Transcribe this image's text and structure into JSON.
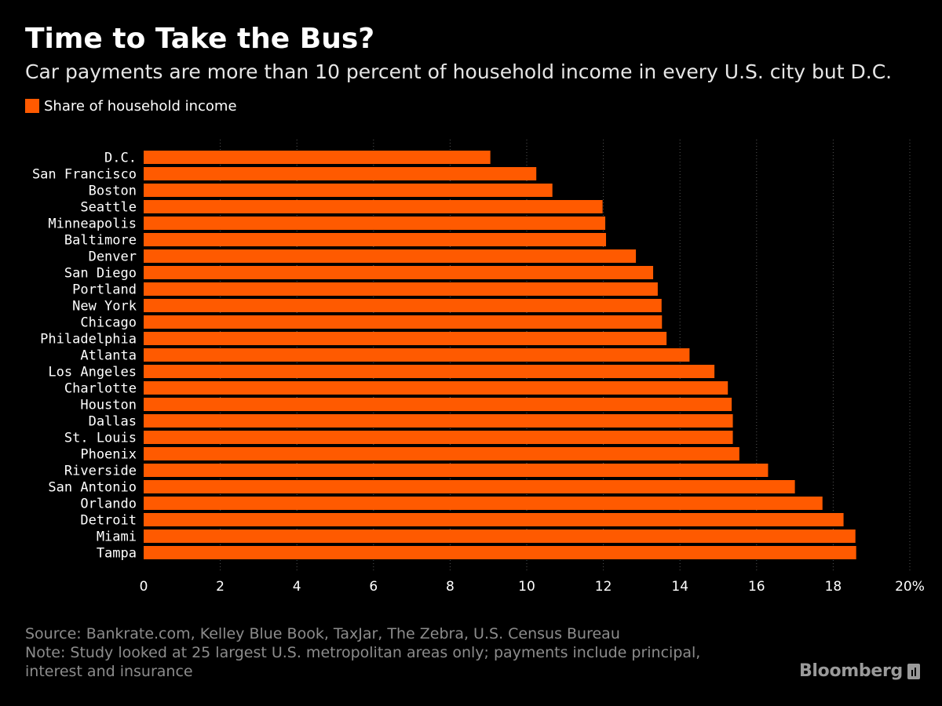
{
  "header": {
    "title": "Time to Take the Bus?",
    "subtitle": "Car payments are more than 10 percent of household income in every U.S. city but D.C."
  },
  "legend": {
    "label": "Share of household income",
    "color": "#ff5a00"
  },
  "footer": {
    "source": "Source: Bankrate.com, Kelley Blue Book, TaxJar, The Zebra, U.S. Census Bureau",
    "note_line1": "Note: Study looked at 25 largest U.S. metropolitan areas only; payments include principal,",
    "note_line2": "interest and insurance"
  },
  "brand": {
    "name": "Bloomberg",
    "icon": "bloomberg-bars-icon"
  },
  "colors": {
    "background": "#000000",
    "bar": "#ff5a00",
    "grid": "#555555",
    "text": "#ffffff"
  },
  "chart_data": {
    "type": "bar",
    "orientation": "horizontal",
    "categories": [
      "D.C.",
      "San Francisco",
      "Boston",
      "Seattle",
      "Minneapolis",
      "Baltimore",
      "Denver",
      "San Diego",
      "Portland",
      "New York",
      "Chicago",
      "Philadelphia",
      "Atlanta",
      "Los Angeles",
      "Charlotte",
      "Houston",
      "Dallas",
      "St. Louis",
      "Phoenix",
      "Riverside",
      "San Antonio",
      "Orlando",
      "Detroit",
      "Miami",
      "Tampa"
    ],
    "series": [
      {
        "name": "Share of household income",
        "values": [
          9.05,
          10.25,
          10.67,
          11.98,
          12.05,
          12.07,
          12.85,
          13.3,
          13.42,
          13.52,
          13.53,
          13.65,
          14.25,
          14.9,
          15.25,
          15.35,
          15.38,
          15.38,
          15.55,
          16.3,
          17.0,
          17.72,
          18.27,
          18.58,
          18.6
        ]
      }
    ],
    "xlim": [
      0,
      20
    ],
    "x_ticks": [
      "0",
      "2",
      "4",
      "6",
      "8",
      "10",
      "12",
      "14",
      "16",
      "18",
      "20%"
    ],
    "grid": "vertical dotted",
    "legend_position": "top-left"
  }
}
